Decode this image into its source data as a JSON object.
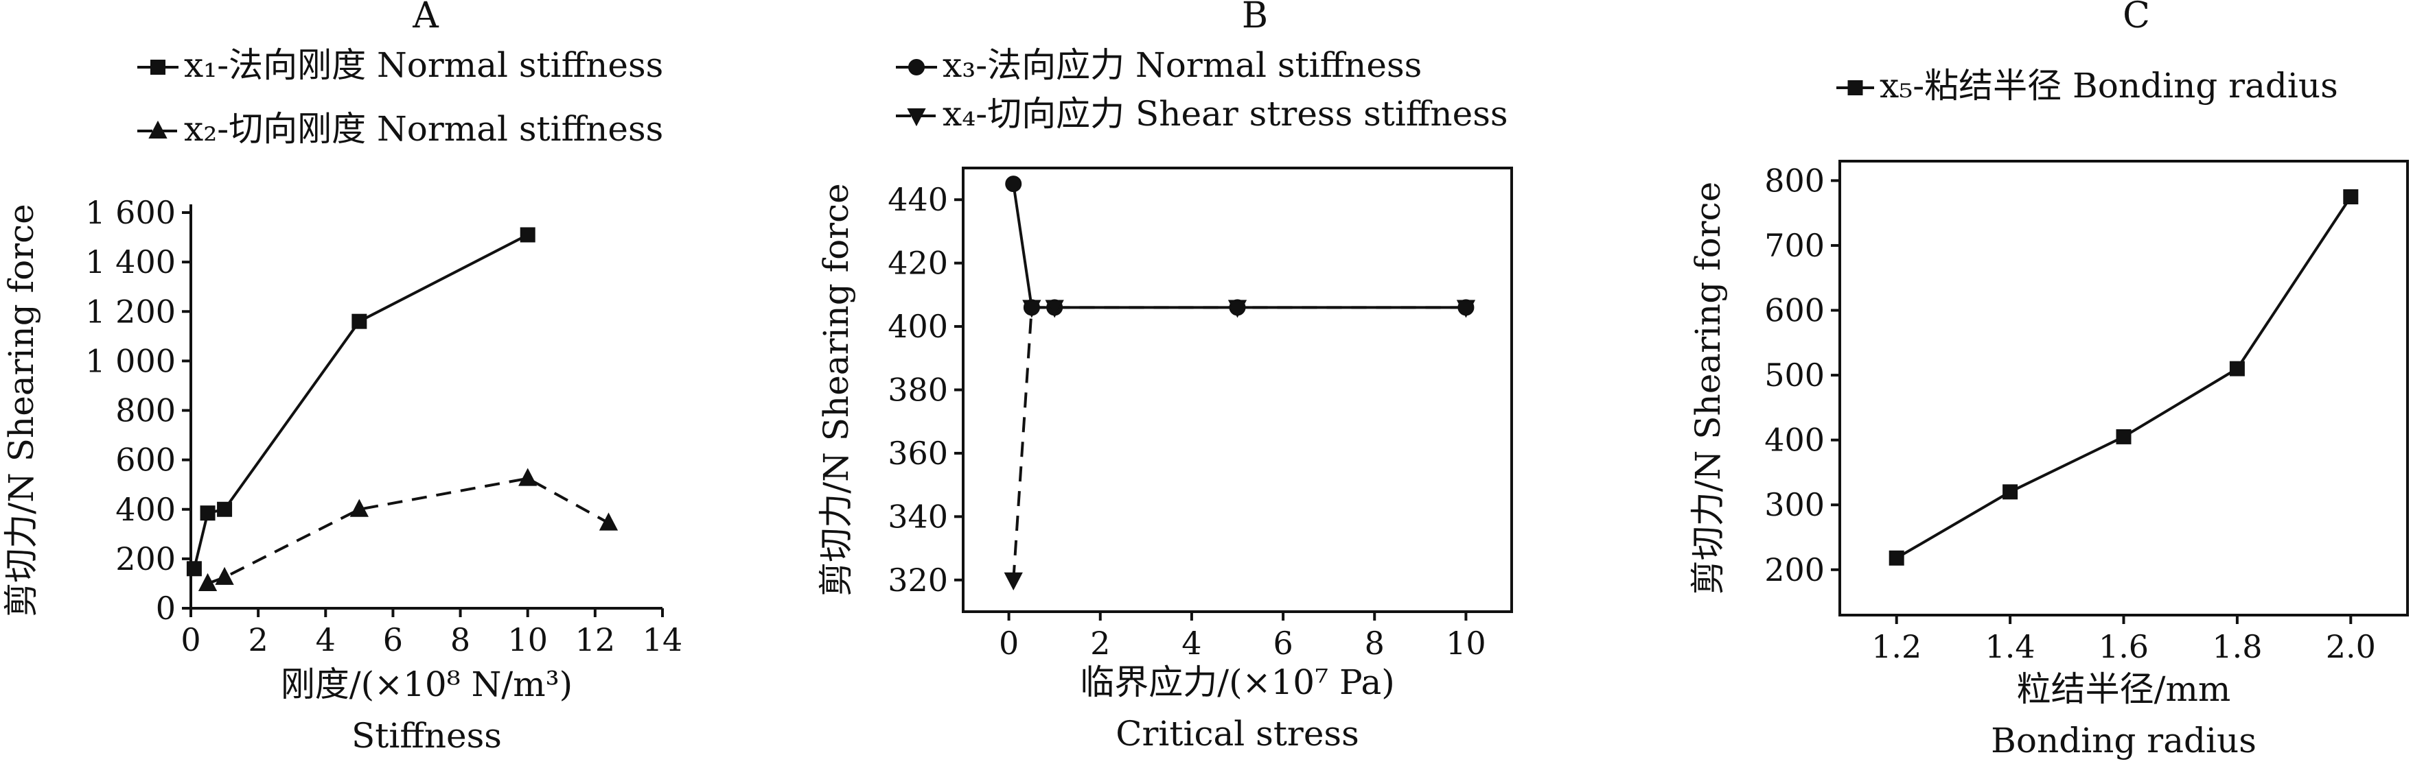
{
  "chart_data": [
    {
      "type": "line",
      "panel": "A",
      "xlabel": "刚度/(×10⁸ N/m³)",
      "xlabel_en": "Stiffness",
      "ylabel": "剪切力/N  Shearing force",
      "xlim": [
        0,
        14
      ],
      "ylim": [
        0,
        1600
      ],
      "x_ticks": [
        0,
        2,
        4,
        6,
        8,
        10,
        12,
        14
      ],
      "y_ticks": [
        0,
        200,
        400,
        600,
        800,
        1000,
        1200,
        1400,
        1600
      ],
      "y_tick_labels": [
        "0",
        "200",
        "400",
        "600",
        "800",
        "1 000",
        "1 200",
        "1 400",
        "1 600"
      ],
      "legend_position": "top-left",
      "series": [
        {
          "name": "x₁-法向刚度 Normal stiffness",
          "marker": "square",
          "line": "solid",
          "x": [
            0.1,
            0.5,
            1,
            5,
            10
          ],
          "y": [
            160,
            385,
            400,
            1160,
            1510
          ]
        },
        {
          "name": "x₂-切向刚度 Normal stiffness",
          "marker": "triangle-up",
          "line": "dashed",
          "x": [
            0.5,
            1,
            5,
            10,
            12.4
          ],
          "y": [
            100,
            125,
            400,
            525,
            345
          ]
        }
      ]
    },
    {
      "type": "line",
      "panel": "B",
      "xlabel": "临界应力/(×10⁷ Pa)",
      "xlabel_en": "Critical stress",
      "ylabel": "剪切力/N  Shearing force",
      "xlim": [
        -1,
        11
      ],
      "ylim": [
        310,
        450
      ],
      "x_ticks": [
        0,
        2,
        4,
        6,
        8,
        10
      ],
      "y_ticks": [
        320,
        340,
        360,
        380,
        400,
        420,
        440
      ],
      "legend_position": "top-left",
      "series": [
        {
          "name": "x₃-法向应力 Normal stiffness",
          "marker": "circle",
          "line": "solid",
          "x": [
            0.1,
            0.5,
            1,
            5,
            10
          ],
          "y": [
            445,
            406,
            406,
            406,
            406
          ]
        },
        {
          "name": "x₄-切向应力 Shear stress stiffness",
          "marker": "triangle-down",
          "line": "dashed",
          "x": [
            0.1,
            0.5,
            1,
            5,
            10
          ],
          "y": [
            320,
            406,
            406,
            406,
            406
          ]
        }
      ]
    },
    {
      "type": "line",
      "panel": "C",
      "xlabel": "粒结半径/mm",
      "xlabel_en": "Bonding radius",
      "ylabel": "剪切力/N  Shearing force",
      "xlim": [
        1.1,
        2.1
      ],
      "ylim": [
        130,
        830
      ],
      "x_ticks": [
        1.2,
        1.4,
        1.6,
        1.8,
        2.0
      ],
      "x_tick_labels": [
        "1.2",
        "1.4",
        "1.6",
        "1.8",
        "2.0"
      ],
      "y_ticks": [
        200,
        300,
        400,
        500,
        600,
        700,
        800
      ],
      "legend_position": "top",
      "series": [
        {
          "name": "x₅-粘结半径  Bonding radius",
          "marker": "square",
          "line": "solid",
          "x": [
            1.2,
            1.4,
            1.6,
            1.8,
            2.0
          ],
          "y": [
            218,
            320,
            405,
            510,
            775
          ]
        }
      ]
    }
  ]
}
